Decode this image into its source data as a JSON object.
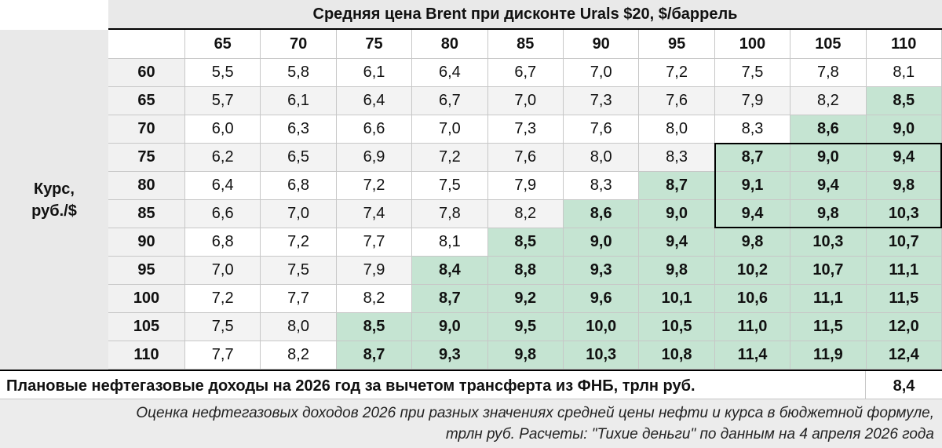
{
  "header": {
    "title": "Средняя цена Brent при дисконте Urals $20, $/баррель"
  },
  "ylabel": {
    "line1": "Курс,",
    "line2": "руб./$"
  },
  "chart_data": {
    "type": "table",
    "title": "Средняя цена Brent при дисконте Urals $20, $/баррель",
    "xlabel": "Средняя цена Brent при дисконте Urals $20, $/баррель",
    "ylabel": "Курс, руб./$",
    "columns": [
      "65",
      "70",
      "75",
      "80",
      "85",
      "90",
      "95",
      "100",
      "105",
      "110"
    ],
    "rows": [
      "60",
      "65",
      "70",
      "75",
      "80",
      "85",
      "90",
      "95",
      "100",
      "105",
      "110"
    ],
    "values": [
      [
        "5,5",
        "5,8",
        "6,1",
        "6,4",
        "6,7",
        "7,0",
        "7,2",
        "7,5",
        "7,8",
        "8,1"
      ],
      [
        "5,7",
        "6,1",
        "6,4",
        "6,7",
        "7,0",
        "7,3",
        "7,6",
        "7,9",
        "8,2",
        "8,5"
      ],
      [
        "6,0",
        "6,3",
        "6,6",
        "7,0",
        "7,3",
        "7,6",
        "8,0",
        "8,3",
        "8,6",
        "9,0"
      ],
      [
        "6,2",
        "6,5",
        "6,9",
        "7,2",
        "7,6",
        "8,0",
        "8,3",
        "8,7",
        "9,0",
        "9,4"
      ],
      [
        "6,4",
        "6,8",
        "7,2",
        "7,5",
        "7,9",
        "8,3",
        "8,7",
        "9,1",
        "9,4",
        "9,8"
      ],
      [
        "6,6",
        "7,0",
        "7,4",
        "7,8",
        "8,2",
        "8,6",
        "9,0",
        "9,4",
        "9,8",
        "10,3"
      ],
      [
        "6,8",
        "7,2",
        "7,7",
        "8,1",
        "8,5",
        "9,0",
        "9,4",
        "9,8",
        "10,3",
        "10,7"
      ],
      [
        "7,0",
        "7,5",
        "7,9",
        "8,4",
        "8,8",
        "9,3",
        "9,8",
        "10,2",
        "10,7",
        "11,1"
      ],
      [
        "7,2",
        "7,7",
        "8,2",
        "8,7",
        "9,2",
        "9,6",
        "10,1",
        "10,6",
        "11,1",
        "11,5"
      ],
      [
        "7,5",
        "8,0",
        "8,5",
        "9,0",
        "9,5",
        "10,0",
        "10,5",
        "11,0",
        "11,5",
        "12,0"
      ],
      [
        "7,7",
        "8,2",
        "8,7",
        "9,3",
        "9,8",
        "10,3",
        "10,8",
        "11,4",
        "11,9",
        "12,4"
      ]
    ],
    "threshold": 8.4,
    "highlight_rule": "value >= threshold",
    "boxed_range": {
      "rows": [
        "75",
        "80",
        "85"
      ],
      "columns": [
        "100",
        "105",
        "110"
      ]
    },
    "colors": {
      "highlight": "#c5e4d2",
      "even_row": "#ffffff",
      "odd_row": "#f3f3f3",
      "header_band": "#e9e9e9"
    }
  },
  "plan": {
    "label": "Плановые нефтегазовые доходы на 2026 год за вычетом трансферта из ФНБ, трлн руб.",
    "value": "8,4"
  },
  "footnote": {
    "line1": "Оценка нефтегазовых доходов 2026 при разных значениях средней цены нефти и курса в бюджетной формуле,",
    "line2": "трлн руб. Расчеты: \"Тихие деньги\" по данным на 4 апреля 2026 года"
  }
}
